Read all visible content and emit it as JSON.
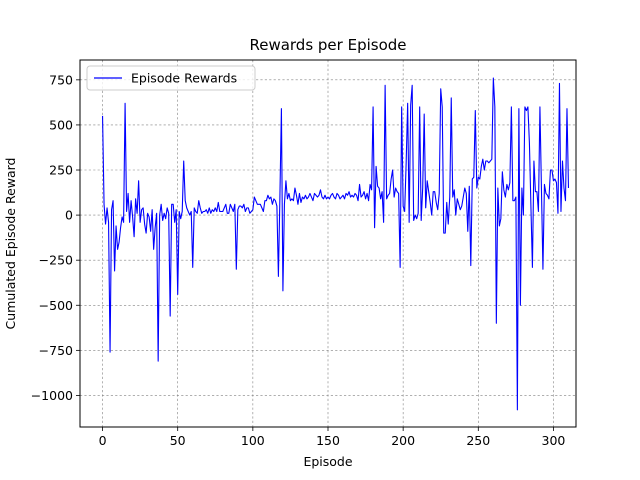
{
  "chart_data": {
    "type": "line",
    "title": "Rewards per Episode",
    "xlabel": "Episode",
    "ylabel": "Cumulated Episode Reward",
    "xlim": [
      -15,
      315
    ],
    "ylim": [
      -1175,
      860
    ],
    "x_ticks": [
      0,
      50,
      100,
      150,
      200,
      250,
      300
    ],
    "y_ticks": [
      -1000,
      -750,
      -500,
      -250,
      0,
      250,
      500,
      750
    ],
    "y_tick_labels": [
      "−1000",
      "−750",
      "−500",
      "−250",
      "0",
      "250",
      "500",
      "750"
    ],
    "grid": true,
    "legend": "top-left",
    "series": [
      {
        "name": "Episode Rewards",
        "color": "#0000ff",
        "x_start": 0,
        "x_step": 1,
        "values": [
          550,
          60,
          -50,
          40,
          -40,
          -760,
          30,
          80,
          -310,
          -60,
          -190,
          -150,
          -70,
          -10,
          -40,
          620,
          20,
          120,
          -40,
          80,
          -10,
          -120,
          90,
          10,
          190,
          -40,
          30,
          40,
          -50,
          -100,
          10,
          -10,
          -90,
          30,
          -190,
          -70,
          10,
          -810,
          0,
          60,
          -30,
          10,
          -20,
          40,
          10,
          -560,
          60,
          60,
          -40,
          30,
          -440,
          20,
          -20,
          20,
          300,
          80,
          40,
          20,
          0,
          20,
          -290,
          40,
          20,
          10,
          80,
          40,
          10,
          20,
          20,
          30,
          10,
          40,
          10,
          30,
          20,
          40,
          20,
          70,
          20,
          20,
          20,
          40,
          60,
          10,
          10,
          60,
          40,
          20,
          60,
          -300,
          30,
          50,
          50,
          40,
          60,
          20,
          40,
          40,
          10,
          20,
          30,
          100,
          80,
          60,
          60,
          60,
          40,
          20,
          80,
          80,
          110,
          90,
          100,
          60,
          90,
          80,
          50,
          -340,
          100,
          590,
          -420,
          60,
          190,
          90,
          120,
          80,
          90,
          80,
          150,
          110,
          60,
          120,
          70,
          100,
          90,
          110,
          90,
          100,
          120,
          100,
          80,
          120,
          110,
          100,
          110,
          140,
          100,
          90,
          110,
          90,
          100,
          90,
          110,
          120,
          100,
          90,
          120,
          110,
          90,
          100,
          110,
          90,
          120,
          110,
          130,
          100,
          110,
          100,
          120,
          110,
          80,
          170,
          100,
          110,
          130,
          90,
          120,
          80,
          170,
          140,
          600,
          -70,
          270,
          160,
          150,
          90,
          130,
          -40,
          720,
          90,
          110,
          120,
          200,
          250,
          100,
          150,
          130,
          120,
          -290,
          600,
          50,
          20,
          290,
          620,
          -40,
          610,
          720,
          -30,
          0,
          -20,
          10,
          600,
          -30,
          150,
          560,
          40,
          190,
          130,
          70,
          0,
          130,
          130,
          70,
          30,
          120,
          700,
          600,
          -100,
          -100,
          70,
          -50,
          100,
          650,
          100,
          140,
          0,
          90,
          60,
          30,
          50,
          100,
          150,
          120,
          -90,
          160,
          -280,
          200,
          210,
          580,
          150,
          210,
          200,
          270,
          310,
          250,
          300,
          300,
          290,
          300,
          310,
          760,
          600,
          -600,
          150,
          -60,
          -20,
          240,
          140,
          100,
          170,
          140,
          180,
          600,
          80,
          80,
          100,
          -1080,
          590,
          -500,
          150,
          0,
          600,
          580,
          600,
          400,
          50,
          -290,
          300,
          130,
          130,
          20,
          600,
          150,
          -300,
          170,
          120,
          110,
          90,
          250,
          250,
          190,
          200,
          180,
          10,
          730,
          20,
          300,
          150,
          80,
          590,
          150
        ]
      }
    ]
  }
}
